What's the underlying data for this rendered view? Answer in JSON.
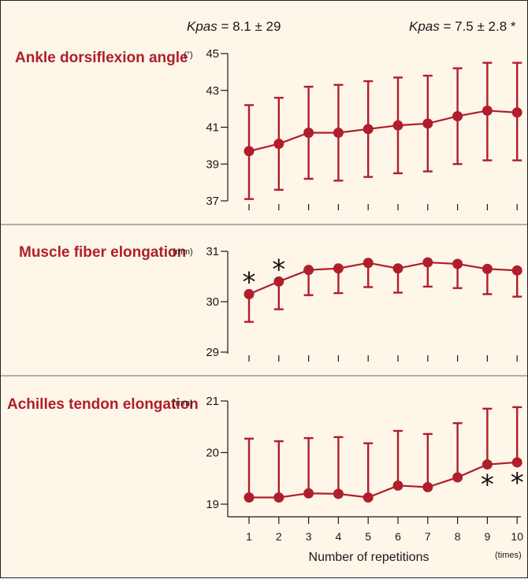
{
  "header": {
    "left": {
      "symbol": "Kpas",
      "text": " = 8.1 ± 29"
    },
    "right": {
      "symbol": "Kpas",
      "text": " = 7.5 ± 2.8 *"
    }
  },
  "chart_data": [
    {
      "type": "line",
      "title": "Ankle dorsiflexion angle",
      "unit": "(°)",
      "x": [
        1,
        2,
        3,
        4,
        5,
        6,
        7,
        8,
        9,
        10
      ],
      "values": [
        39.7,
        40.1,
        40.7,
        40.7,
        40.9,
        41.1,
        41.2,
        41.6,
        41.9,
        41.8
      ],
      "err_upper": [
        42.2,
        42.6,
        43.2,
        43.3,
        43.5,
        43.7,
        43.8,
        44.2,
        44.5,
        44.5
      ],
      "err_lower": [
        37.1,
        37.6,
        38.2,
        38.1,
        38.3,
        38.5,
        38.6,
        39.0,
        39.2,
        39.2
      ],
      "yticks": [
        "37",
        "39",
        "41",
        "43",
        "45"
      ],
      "ylim": [
        37,
        45
      ],
      "significant": []
    },
    {
      "type": "line",
      "title": "Muscle fiber elongation",
      "unit": "(mm)",
      "x": [
        1,
        2,
        3,
        4,
        5,
        6,
        7,
        8,
        9,
        10
      ],
      "values": [
        30.15,
        30.4,
        30.63,
        30.66,
        30.77,
        30.66,
        30.78,
        30.75,
        30.65,
        30.62
      ],
      "err_upper": [
        30.15,
        30.4,
        30.63,
        30.66,
        30.77,
        30.66,
        30.78,
        30.75,
        30.65,
        30.62
      ],
      "err_lower": [
        29.6,
        29.85,
        30.13,
        30.17,
        30.29,
        30.18,
        30.3,
        30.27,
        30.15,
        30.1
      ],
      "yticks": [
        "29",
        "30",
        "31"
      ],
      "ylim": [
        29,
        31
      ],
      "significant": [
        1,
        2
      ]
    },
    {
      "type": "line",
      "title": "Achilles tendon elongation",
      "unit": "(mm)",
      "x": [
        1,
        2,
        3,
        4,
        5,
        6,
        7,
        8,
        9,
        10
      ],
      "values": [
        19.13,
        19.13,
        19.21,
        19.2,
        19.13,
        19.36,
        19.33,
        19.52,
        19.77,
        19.81
      ],
      "err_upper": [
        20.27,
        20.22,
        20.28,
        20.3,
        20.18,
        20.42,
        20.36,
        20.57,
        20.85,
        20.88
      ],
      "err_lower": [
        19.13,
        19.13,
        19.21,
        19.2,
        19.13,
        19.36,
        19.33,
        19.52,
        19.77,
        19.81
      ],
      "yticks": [
        "19",
        "20",
        "21"
      ],
      "ylim": [
        19,
        21
      ],
      "significant": [
        9,
        10
      ]
    }
  ],
  "xaxis": {
    "ticks": [
      "1",
      "2",
      "3",
      "4",
      "5",
      "6",
      "7",
      "8",
      "9",
      "10"
    ],
    "label": "Number of repetitions",
    "unit": "(times)"
  },
  "colors": {
    "series": "#b01e2b",
    "background": "#fdf6e9",
    "axis": "#1a1a1a"
  }
}
